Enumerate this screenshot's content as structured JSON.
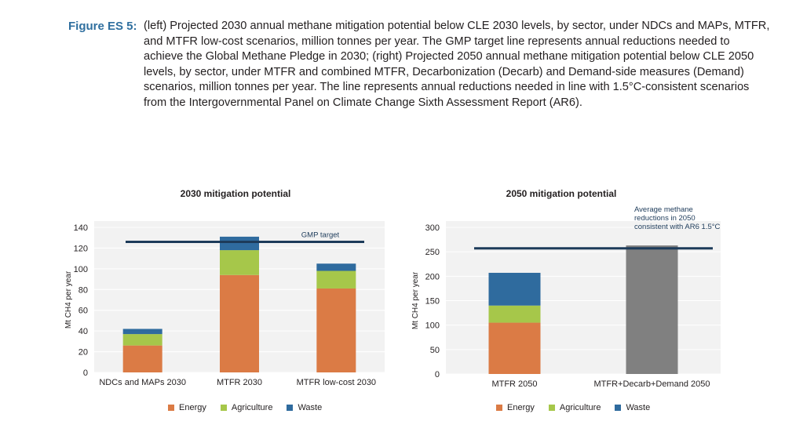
{
  "caption": {
    "label": "Figure ES 5:",
    "text": "(left) Projected 2030 annual methane mitigation potential below CLE 2030 levels, by sector, under NDCs and MAPs, MTFR, and MTFR low-cost scenarios, million tonnes per year. The GMP target line represents annual reductions needed to achieve the Global Methane Pledge in 2030; (right) Projected 2050 annual methane mitigation potential below CLE 2050 levels, by sector, under MTFR and combined MTFR, Decarbonization (Decarb) and Demand-side measures (Demand) scenarios, million tonnes per year. The line represents annual reductions needed in line with 1.5°C-consistent scenarios from the Intergovernmental Panel on Climate Change Sixth Assessment Report (AR6)."
  },
  "colors": {
    "Energy": "#db7b45",
    "Agriculture": "#a6c74a",
    "Waste": "#2f6b9e",
    "AR6": "#808080",
    "target_line": "#1d3b5a",
    "plot_bg": "#f2f2f2",
    "grid": "#ffffff"
  },
  "chart_data": [
    {
      "type": "bar",
      "stacked": true,
      "title": "2030 mitigation potential",
      "ylabel": "Mt CH4 per year",
      "ylim": [
        0,
        140
      ],
      "yticks": [
        "0",
        "20",
        "40",
        "60",
        "80",
        "100",
        "120",
        "140"
      ],
      "categories": [
        "NDCs and MAPs 2030",
        "MTFR 2030",
        "MTFR low-cost 2030"
      ],
      "series": [
        {
          "name": "Energy",
          "values": [
            26,
            94,
            81
          ]
        },
        {
          "name": "Agriculture",
          "values": [
            11,
            24,
            17
          ]
        },
        {
          "name": "Waste",
          "values": [
            5,
            13,
            7
          ]
        }
      ],
      "reference_line": {
        "label": "GMP target",
        "value": 126
      },
      "legend": [
        "Energy",
        "Agriculture",
        "Waste"
      ],
      "legend_position": "bottom"
    },
    {
      "type": "bar",
      "stacked": true,
      "title": "2050 mitigation potential",
      "ylabel": "Mt CH4 per year",
      "ylim": [
        0,
        300
      ],
      "yticks": [
        "0",
        "50",
        "100",
        "150",
        "200",
        "250",
        "300"
      ],
      "categories": [
        "MTFR 2050",
        "MTFR+Decarb+Demand 2050"
      ],
      "series": [
        {
          "name": "Energy",
          "values": [
            105,
            0
          ]
        },
        {
          "name": "Agriculture",
          "values": [
            35,
            0
          ]
        },
        {
          "name": "Waste",
          "values": [
            67,
            0
          ]
        }
      ],
      "total_bars": [
        {
          "category": "MTFR+Decarb+Demand 2050",
          "value": 263
        }
      ],
      "reference_line": {
        "label": "Average methane reductions in 2050 consistent with AR6 1.5°C",
        "value": 257
      },
      "legend": [
        "Energy",
        "Agriculture",
        "Waste"
      ],
      "legend_position": "bottom"
    }
  ]
}
